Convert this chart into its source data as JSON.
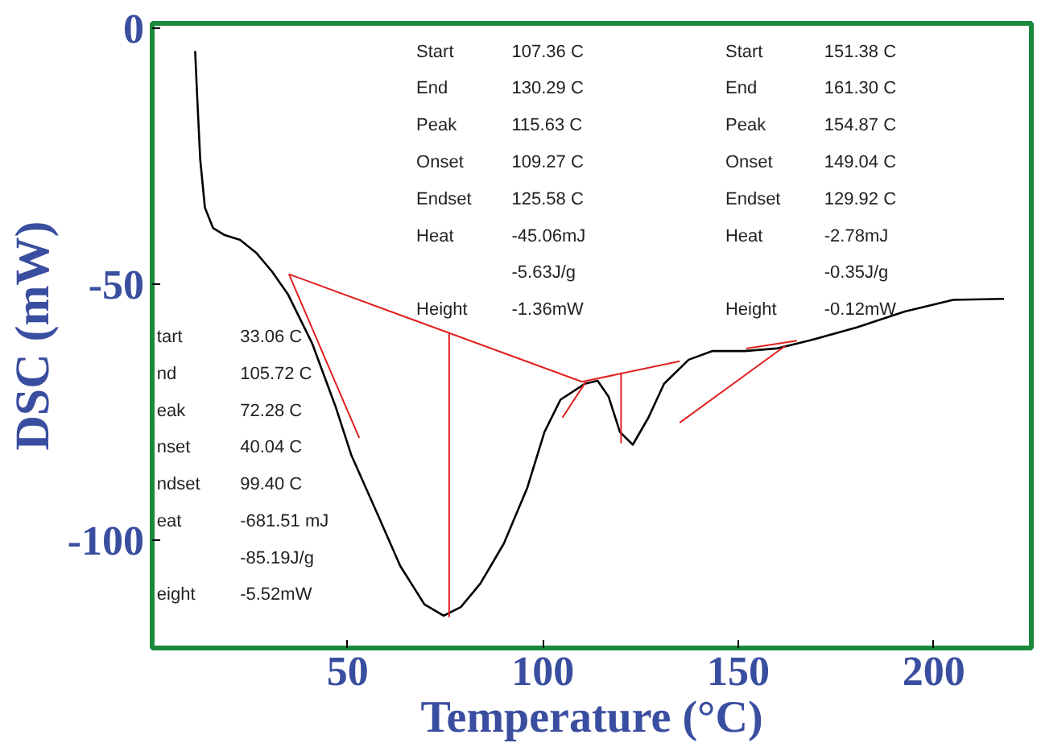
{
  "chart_data": {
    "type": "line",
    "xlabel": "Temperature (°C)",
    "ylabel": "DSC (mW)",
    "xlim": [
      0,
      225
    ],
    "ylim": [
      -121,
      1
    ],
    "xticks": [
      50,
      100,
      150,
      200
    ],
    "yticks": [
      0,
      -50,
      -100
    ],
    "grid": false,
    "line_style": "solid",
    "marker": "none",
    "series": [
      {
        "color": "#000000",
        "x": [
          11,
          11.5,
          12.3,
          13.5,
          15.6,
          18.4,
          22.5,
          26.6,
          30.7,
          34.8,
          41,
          47,
          51,
          57.4,
          63.5,
          69.7,
          74.6,
          79,
          84,
          90,
          96,
          100.4,
          104.5,
          110.7,
          114,
          116.8,
          119.7,
          123,
          127,
          131,
          137.3,
          143.4,
          151.6,
          159.8,
          168,
          180.3,
          192.6,
          205,
          218
        ],
        "values": [
          -4.4,
          -13,
          -25.6,
          -35,
          -39,
          -40.3,
          -41.3,
          -43.8,
          -47.5,
          -52,
          -61.6,
          -74,
          -83.4,
          -94.4,
          -105,
          -112.5,
          -114.7,
          -113,
          -108.4,
          -100.6,
          -89.7,
          -78.8,
          -72.5,
          -69.4,
          -68.8,
          -71.9,
          -78.8,
          -81.3,
          -76,
          -69.4,
          -64.7,
          -63,
          -63,
          -62.5,
          -61,
          -58.4,
          -55.3,
          -53,
          -52.8
        ]
      },
      {
        "color": "#e02020",
        "x": [
          35,
          110
        ],
        "values": [
          -48,
          -69
        ]
      },
      {
        "color": "#e02020",
        "x": [
          35,
          53
        ],
        "values": [
          -48,
          -80
        ]
      },
      {
        "color": "#e02020",
        "x": [
          76,
          76
        ],
        "values": [
          -59.4,
          -115
        ]
      },
      {
        "color": "#e02020",
        "x": [
          110,
          135
        ],
        "values": [
          -69,
          -65
        ]
      },
      {
        "color": "#e02020",
        "x": [
          120,
          120
        ],
        "values": [
          -67.2,
          -81
        ]
      },
      {
        "color": "#e02020",
        "x": [
          105,
          111
        ],
        "values": [
          -76,
          -69
        ]
      },
      {
        "color": "#e02020",
        "x": [
          152,
          165
        ],
        "values": [
          -62.5,
          -61
        ]
      },
      {
        "color": "#e02020",
        "x": [
          135,
          162
        ],
        "values": [
          -77,
          -62
        ]
      }
    ],
    "annotations": [
      "Start",
      "End",
      "Peak",
      "Onset",
      "Endset",
      "Heat",
      "Height",
      "107.36 C",
      "130.29 C",
      "115.63 C",
      "109.27 C",
      "125.58 C",
      "-45.06mJ",
      "-5.63J/g",
      "-1.36mW",
      "Start",
      "End",
      "Peak",
      "Onset",
      "Endset",
      "Heat",
      "Height",
      "151.38 C",
      "161.30 C",
      "154.87 C",
      "149.04 C",
      "129.92 C",
      "-2.78mJ",
      "-0.35J/g",
      "-0.12mW",
      "tart",
      "nd",
      "eak",
      "nset",
      "ndset",
      "eat",
      "eight",
      "33.06 C",
      "105.72 C",
      "72.28 C",
      "40.04 C",
      "99.40 C",
      "-681.51 mJ",
      "-85.19J/g",
      "-5.52mW"
    ]
  }
}
